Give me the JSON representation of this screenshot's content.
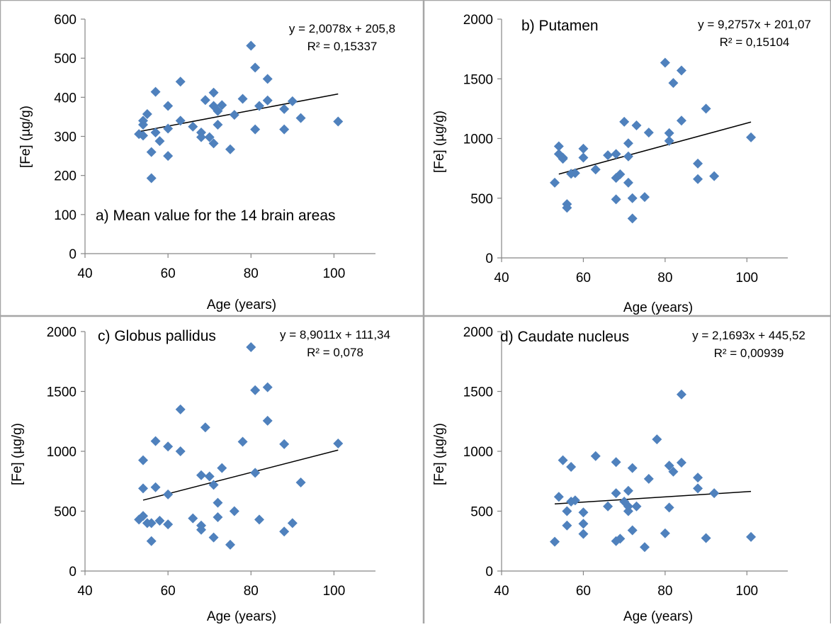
{
  "chart_data": [
    {
      "type": "scatter",
      "title": "a) Mean value for the 14 brain areas",
      "xlabel": "Age (years)",
      "ylabel": "[Fe] (µg/g)",
      "xlim": [
        40,
        110
      ],
      "ylim": [
        0,
        600
      ],
      "xticks": [
        "40",
        "60",
        "80",
        "100"
      ],
      "yticks": [
        "0",
        "100",
        "200",
        "300",
        "400",
        "500",
        "600"
      ],
      "marker_color": "#4f81bd",
      "equation": "y = 2,0078x + 205,8",
      "r2": "R² = 0,15337",
      "trendline": {
        "slope": 2.0078,
        "intercept": 205.8,
        "x_range": [
          53,
          101
        ]
      },
      "x": [
        53,
        54,
        54,
        54,
        55,
        56,
        56,
        57,
        57,
        58,
        60,
        60,
        60,
        63,
        63,
        66,
        68,
        68,
        69,
        70,
        71,
        71,
        71,
        72,
        72,
        73,
        75,
        76,
        78,
        80,
        81,
        81,
        82,
        84,
        84,
        88,
        88,
        90,
        92,
        101
      ],
      "y": [
        306,
        302,
        330,
        340,
        357,
        260,
        193,
        414,
        310,
        288,
        378,
        320,
        250,
        340,
        440,
        325,
        310,
        298,
        393,
        298,
        412,
        378,
        282,
        330,
        365,
        380,
        267,
        355,
        396,
        532,
        476,
        318,
        378,
        447,
        392,
        370,
        318,
        390,
        347,
        338
      ]
    },
    {
      "type": "scatter",
      "title": "b) Putamen",
      "xlabel": "Age (years)",
      "ylabel": "[Fe] (µg/g)",
      "xlim": [
        40,
        110
      ],
      "ylim": [
        0,
        2000
      ],
      "xticks": [
        "40",
        "60",
        "80",
        "100"
      ],
      "yticks": [
        "0",
        "500",
        "1000",
        "1500",
        "2000"
      ],
      "marker_color": "#4f81bd",
      "equation": "y = 9,2757x + 201,07",
      "r2": "R² = 0,15104",
      "trendline": {
        "slope": 9.2757,
        "intercept": 201.07,
        "x_range": [
          54,
          101
        ]
      },
      "x": [
        53,
        54,
        54,
        55,
        55,
        56,
        56,
        57,
        58,
        60,
        60,
        63,
        66,
        68,
        68,
        68,
        69,
        70,
        71,
        71,
        71,
        72,
        72,
        73,
        75,
        76,
        80,
        81,
        81,
        82,
        84,
        84,
        88,
        88,
        90,
        92,
        101
      ],
      "y": [
        630,
        935,
        870,
        840,
        830,
        450,
        420,
        705,
        710,
        915,
        840,
        740,
        860,
        870,
        670,
        490,
        700,
        1140,
        960,
        850,
        630,
        500,
        330,
        1110,
        510,
        1050,
        1635,
        1045,
        980,
        1465,
        1570,
        1150,
        790,
        660,
        1250,
        685,
        1010
      ]
    },
    {
      "type": "scatter",
      "title": "c) Globus pallidus",
      "xlabel": "Age (years)",
      "ylabel": "[Fe] (µg/g)",
      "xlim": [
        40,
        110
      ],
      "ylim": [
        0,
        2000
      ],
      "xticks": [
        "40",
        "60",
        "80",
        "100"
      ],
      "yticks": [
        "0",
        "500",
        "1000",
        "1500",
        "2000"
      ],
      "marker_color": "#4f81bd",
      "equation": "y = 8,9011x + 111,34",
      "r2": "R² = 0,078",
      "trendline": {
        "slope": 8.9011,
        "intercept": 111.34,
        "x_range": [
          54,
          101
        ]
      },
      "x": [
        53,
        54,
        54,
        54,
        55,
        56,
        56,
        57,
        57,
        58,
        60,
        60,
        60,
        63,
        63,
        66,
        68,
        68,
        68,
        69,
        70,
        71,
        71,
        72,
        72,
        73,
        75,
        76,
        78,
        80,
        81,
        81,
        82,
        84,
        84,
        88,
        88,
        90,
        92,
        101
      ],
      "y": [
        430,
        925,
        690,
        460,
        400,
        250,
        400,
        1085,
        700,
        420,
        640,
        1040,
        390,
        1350,
        1000,
        440,
        800,
        380,
        345,
        1200,
        790,
        720,
        280,
        570,
        450,
        860,
        220,
        500,
        1080,
        1870,
        1510,
        820,
        430,
        1535,
        1255,
        1060,
        330,
        400,
        740,
        1065
      ]
    },
    {
      "type": "scatter",
      "title": "d) Caudate nucleus",
      "xlabel": "Age (years)",
      "ylabel": "[Fe] (µg/g)",
      "xlim": [
        40,
        110
      ],
      "ylim": [
        0,
        2000
      ],
      "xticks": [
        "40",
        "60",
        "80",
        "100"
      ],
      "yticks": [
        "0",
        "500",
        "1000",
        "1500",
        "2000"
      ],
      "marker_color": "#4f81bd",
      "equation": "y = 2,1693x + 445,52",
      "r2": "R² = 0,00939",
      "trendline": {
        "slope": 2.1693,
        "intercept": 445.52,
        "x_range": [
          53,
          101
        ]
      },
      "x": [
        53,
        54,
        55,
        56,
        56,
        57,
        57,
        58,
        60,
        60,
        60,
        63,
        66,
        68,
        68,
        68,
        69,
        70,
        71,
        71,
        71,
        72,
        72,
        73,
        75,
        76,
        78,
        80,
        81,
        81,
        82,
        84,
        84,
        88,
        88,
        90,
        92,
        101
      ],
      "y": [
        245,
        620,
        925,
        500,
        380,
        870,
        580,
        590,
        490,
        395,
        310,
        960,
        540,
        910,
        650,
        250,
        270,
        580,
        670,
        540,
        500,
        860,
        340,
        540,
        200,
        770,
        1100,
        315,
        880,
        530,
        830,
        1475,
        905,
        780,
        690,
        275,
        650,
        285
      ]
    }
  ]
}
